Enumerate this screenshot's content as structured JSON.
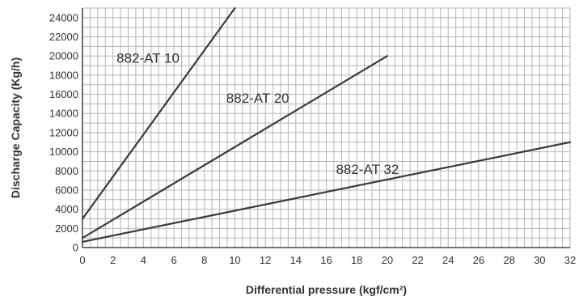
{
  "colors": {
    "background": "#ffffff",
    "grid": "#b5b5b5",
    "axis": "#444444",
    "series_line": "#3a3a3a",
    "text": "#333333"
  },
  "chart_data": {
    "type": "line",
    "title": "",
    "xlabel": "Differential pressure (kgf/cm²)",
    "ylabel": "Discharge Capacity (Kg/h)",
    "xlim": [
      0,
      32
    ],
    "ylim": [
      0,
      25000
    ],
    "x_ticks": [
      0,
      2,
      4,
      6,
      8,
      10,
      12,
      14,
      16,
      18,
      20,
      22,
      24,
      26,
      28,
      30,
      32
    ],
    "y_ticks": [
      0,
      2000,
      4000,
      6000,
      8000,
      10000,
      12000,
      14000,
      16000,
      18000,
      20000,
      22000,
      24000
    ],
    "x_minor_step": 0.5,
    "y_minor_step": 1000,
    "grid": true,
    "legend": "none",
    "series": [
      {
        "name": "882-AT 10",
        "x": [
          0,
          10
        ],
        "y": [
          3000,
          25000
        ],
        "label_at": [
          4.3,
          19300
        ]
      },
      {
        "name": "882-AT 20",
        "x": [
          0,
          20
        ],
        "y": [
          1000,
          20000
        ],
        "label_at": [
          11.5,
          15100
        ]
      },
      {
        "name": "882-AT 32",
        "x": [
          0,
          32
        ],
        "y": [
          600,
          11000
        ],
        "label_at": [
          18.7,
          7700
        ]
      }
    ]
  }
}
